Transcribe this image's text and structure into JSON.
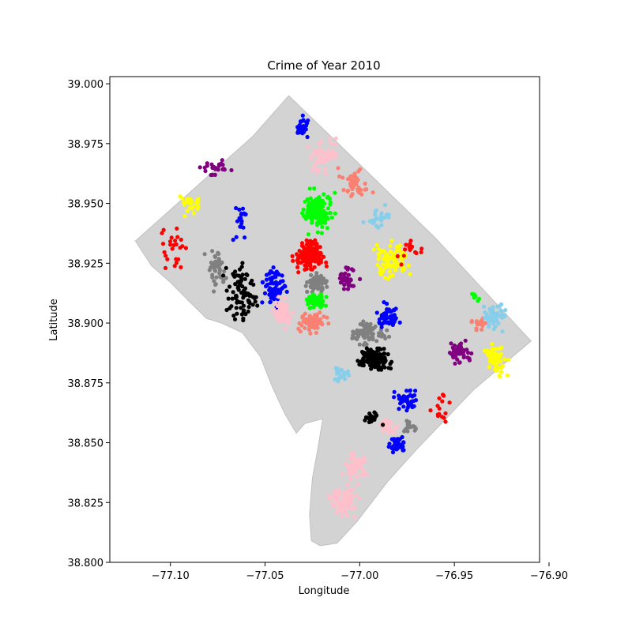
{
  "chart_data": {
    "type": "scatter",
    "title": "Crime of Year 2010",
    "xlabel": "Longitude",
    "ylabel": "Latitude",
    "xlim": [
      -77.132,
      -76.905
    ],
    "ylim": [
      38.8,
      39.003
    ],
    "x_ticks": [
      -77.1,
      -77.05,
      -77.0,
      -76.95,
      -76.9
    ],
    "x_tick_labels": [
      "−77.10",
      "−77.05",
      "−77.00",
      "−76.95",
      "−76.90"
    ],
    "y_ticks": [
      38.8,
      38.825,
      38.85,
      38.875,
      38.9,
      38.925,
      38.95,
      38.975,
      39.0
    ],
    "y_tick_labels": [
      "38.800",
      "38.825",
      "38.850",
      "38.875",
      "38.900",
      "38.925",
      "38.950",
      "38.975",
      "39.000"
    ],
    "grid": false,
    "legend": "none",
    "boundary": {
      "fill": "#d3d3d3",
      "edge": "#c0c0c0",
      "lonlat": [
        [
          -77.1185,
          38.9343
        ],
        [
          -77.092,
          38.953
        ],
        [
          -77.0565,
          38.978
        ],
        [
          -77.0375,
          38.995
        ],
        [
          -77.01,
          38.974
        ],
        [
          -76.96,
          38.9355
        ],
        [
          -76.9095,
          38.8925
        ],
        [
          -76.94,
          38.872
        ],
        [
          -76.969,
          38.848
        ],
        [
          -76.985,
          38.834
        ],
        [
          -77.0015,
          38.817
        ],
        [
          -77.012,
          38.808
        ],
        [
          -77.021,
          38.807
        ],
        [
          -77.0255,
          38.809
        ],
        [
          -77.0265,
          38.82
        ],
        [
          -77.025,
          38.835
        ],
        [
          -77.022,
          38.848
        ],
        [
          -77.0195,
          38.86
        ],
        [
          -77.029,
          38.858
        ],
        [
          -77.0335,
          38.854
        ],
        [
          -77.0395,
          38.862
        ],
        [
          -77.046,
          38.873
        ],
        [
          -77.0525,
          38.886
        ],
        [
          -77.062,
          38.896
        ],
        [
          -77.073,
          38.9
        ],
        [
          -77.081,
          38.902
        ],
        [
          -77.09,
          38.909
        ],
        [
          -77.1,
          38.917
        ],
        [
          -77.11,
          38.924
        ],
        [
          -77.1185,
          38.9343
        ]
      ]
    },
    "clusters": [
      {
        "color": "#0000ff",
        "center": [
          -77.03,
          38.982
        ],
        "spread": [
          0.004,
          0.006
        ],
        "count": 30
      },
      {
        "color": "#ffc0cb",
        "center": [
          -77.018,
          38.97
        ],
        "spread": [
          0.009,
          0.01
        ],
        "count": 55
      },
      {
        "color": "#fa8072",
        "center": [
          -77.003,
          38.958
        ],
        "spread": [
          0.012,
          0.01
        ],
        "count": 45
      },
      {
        "color": "#87ceeb",
        "center": [
          -76.99,
          38.944
        ],
        "spread": [
          0.01,
          0.006
        ],
        "count": 25
      },
      {
        "color": "#800080",
        "center": [
          -77.078,
          38.965
        ],
        "spread": [
          0.01,
          0.005
        ],
        "count": 25
      },
      {
        "color": "#ffff00",
        "center": [
          -77.09,
          38.95
        ],
        "spread": [
          0.008,
          0.005
        ],
        "count": 25
      },
      {
        "color": "#ff0000",
        "center": [
          -77.1,
          38.932
        ],
        "spread": [
          0.012,
          0.014
        ],
        "count": 25
      },
      {
        "color": "#0000ff",
        "center": [
          -77.063,
          38.942
        ],
        "spread": [
          0.005,
          0.01
        ],
        "count": 20
      },
      {
        "color": "#808080",
        "center": [
          -77.076,
          38.922
        ],
        "spread": [
          0.006,
          0.012
        ],
        "count": 45
      },
      {
        "color": "#000000",
        "center": [
          -77.062,
          38.912
        ],
        "spread": [
          0.01,
          0.018
        ],
        "count": 85
      },
      {
        "color": "#00ff00",
        "center": [
          -77.022,
          38.947
        ],
        "spread": [
          0.01,
          0.01
        ],
        "count": 130
      },
      {
        "color": "#ff0000",
        "center": [
          -77.027,
          38.928
        ],
        "spread": [
          0.01,
          0.008
        ],
        "count": 180
      },
      {
        "color": "#0000ff",
        "center": [
          -77.045,
          38.916
        ],
        "spread": [
          0.008,
          0.012
        ],
        "count": 70
      },
      {
        "color": "#ffc0cb",
        "center": [
          -77.04,
          38.905
        ],
        "spread": [
          0.006,
          0.008
        ],
        "count": 50
      },
      {
        "color": "#808080",
        "center": [
          -77.023,
          38.917
        ],
        "spread": [
          0.008,
          0.005
        ],
        "count": 75
      },
      {
        "color": "#00ff00",
        "center": [
          -77.023,
          38.909
        ],
        "spread": [
          0.008,
          0.004
        ],
        "count": 55
      },
      {
        "color": "#fa8072",
        "center": [
          -77.025,
          38.9
        ],
        "spread": [
          0.01,
          0.005
        ],
        "count": 70
      },
      {
        "color": "#800080",
        "center": [
          -77.007,
          38.918
        ],
        "spread": [
          0.008,
          0.007
        ],
        "count": 40
      },
      {
        "color": "#ffff00",
        "center": [
          -76.983,
          38.926
        ],
        "spread": [
          0.012,
          0.01
        ],
        "count": 90
      },
      {
        "color": "#ff0000",
        "center": [
          -76.972,
          38.93
        ],
        "spread": [
          0.01,
          0.008
        ],
        "count": 15
      },
      {
        "color": "#808080",
        "center": [
          -76.995,
          38.896
        ],
        "spread": [
          0.012,
          0.006
        ],
        "count": 70
      },
      {
        "color": "#0000ff",
        "center": [
          -76.985,
          38.902
        ],
        "spread": [
          0.008,
          0.008
        ],
        "count": 60
      },
      {
        "color": "#000000",
        "center": [
          -76.992,
          38.885
        ],
        "spread": [
          0.012,
          0.006
        ],
        "count": 150
      },
      {
        "color": "#87ceeb",
        "center": [
          -77.01,
          38.878
        ],
        "spread": [
          0.006,
          0.005
        ],
        "count": 25
      },
      {
        "color": "#0000ff",
        "center": [
          -76.975,
          38.868
        ],
        "spread": [
          0.008,
          0.006
        ],
        "count": 40
      },
      {
        "color": "#ffc0cb",
        "center": [
          -76.985,
          38.857
        ],
        "spread": [
          0.008,
          0.005
        ],
        "count": 30
      },
      {
        "color": "#000000",
        "center": [
          -76.994,
          38.86
        ],
        "spread": [
          0.006,
          0.004
        ],
        "count": 25
      },
      {
        "color": "#808080",
        "center": [
          -76.974,
          38.857
        ],
        "spread": [
          0.004,
          0.004
        ],
        "count": 20
      },
      {
        "color": "#0000ff",
        "center": [
          -76.98,
          38.849
        ],
        "spread": [
          0.006,
          0.004
        ],
        "count": 40
      },
      {
        "color": "#ff0000",
        "center": [
          -76.958,
          38.864
        ],
        "spread": [
          0.01,
          0.01
        ],
        "count": 15
      },
      {
        "color": "#ffc0cb",
        "center": [
          -77.002,
          38.84
        ],
        "spread": [
          0.008,
          0.006
        ],
        "count": 55
      },
      {
        "color": "#ffc0cb",
        "center": [
          -77.009,
          38.826
        ],
        "spread": [
          0.01,
          0.008
        ],
        "count": 75
      },
      {
        "color": "#800080",
        "center": [
          -76.948,
          38.888
        ],
        "spread": [
          0.008,
          0.006
        ],
        "count": 45
      },
      {
        "color": "#fa8072",
        "center": [
          -76.936,
          38.9
        ],
        "spread": [
          0.006,
          0.004
        ],
        "count": 20
      },
      {
        "color": "#87ceeb",
        "center": [
          -76.929,
          38.903
        ],
        "spread": [
          0.008,
          0.007
        ],
        "count": 55
      },
      {
        "color": "#ffff00",
        "center": [
          -76.928,
          38.885
        ],
        "spread": [
          0.008,
          0.008
        ],
        "count": 60
      },
      {
        "color": "#00ff00",
        "center": [
          -76.938,
          38.911
        ],
        "spread": [
          0.003,
          0.003
        ],
        "count": 8
      }
    ]
  }
}
